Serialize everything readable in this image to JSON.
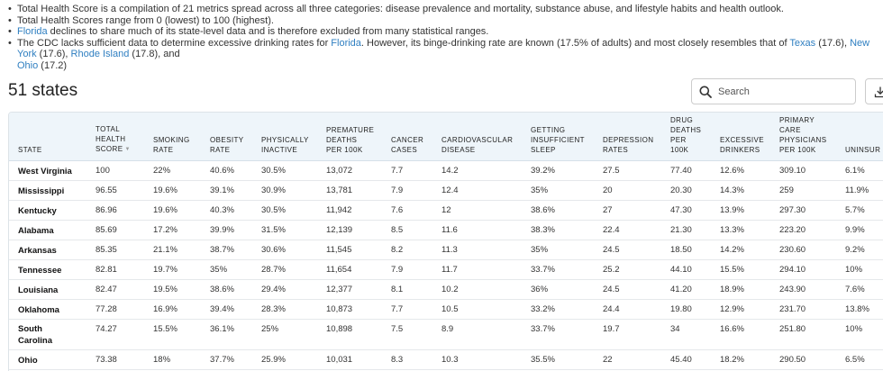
{
  "notes": {
    "n1": "Total Health Score is a compilation of 21 metrics spread across all three categories: disease prevalence and mortality, substance abuse, and lifestyle habits and health outlook.",
    "n2": "Total Health Scores range from 0 (lowest) to 100 (highest).",
    "n3_link": "Florida",
    "n3_text": " declines to share much of its state-level data and is therefore excluded from many statistical ranges.",
    "n4_text1": "The CDC lacks sufficient data to determine excessive drinking rates for ",
    "n4_link1": "Florida",
    "n4_text2": ". However, its binge-drinking rate are known (17.5% of adults) and most closely resembles that of ",
    "n4_link2": "Texas",
    "n4_text3": " (17.6), ",
    "n4_link3": "New York",
    "n4_text4": " (17.6), ",
    "n4_link4": "Rhode Island",
    "n4_text5": " (17.8), and",
    "n4_link5": "Ohio",
    "n4_text6": " (17.2)"
  },
  "count_title": "51 states",
  "search": {
    "placeholder": "Search"
  },
  "icons": {
    "search": "search-icon",
    "download": "download-icon",
    "sort": "sort-down-icon"
  },
  "colors": {
    "link": "#2f7fc1",
    "header_bg": "#eef5fa"
  },
  "table": {
    "columns": [
      "STATE",
      "TOTAL\nHEALTH\nSCORE",
      "SMOKING\nRATE",
      "OBESITY\nRATE",
      "PHYSICALLY\nINACTIVE",
      "PREMATURE\nDEATHS\nPER 100K",
      "CANCER\nCASES",
      "CARDIOVASCULAR\nDISEASE",
      "GETTING\nINSUFFICIENT\nSLEEP",
      "DEPRESSION\nRATES",
      "DRUG\nDEATHS\nPER\n100K",
      "EXCESSIVE\nDRINKERS",
      "PRIMARY\nCARE\nPHYSICIANS\nPER 100K",
      "UNINSUR"
    ],
    "rows": [
      [
        "West Virginia",
        "100",
        "22%",
        "40.6%",
        "30.5%",
        "13,072",
        "7.7",
        "14.2",
        "39.2%",
        "27.5",
        "77.40",
        "12.6%",
        "309.10",
        "6.1%"
      ],
      [
        "Mississippi",
        "96.55",
        "19.6%",
        "39.1%",
        "30.9%",
        "13,781",
        "7.9",
        "12.4",
        "35%",
        "20",
        "20.30",
        "14.3%",
        "259",
        "11.9%"
      ],
      [
        "Kentucky",
        "86.96",
        "19.6%",
        "40.3%",
        "30.5%",
        "11,942",
        "7.6",
        "12",
        "38.6%",
        "27",
        "47.30",
        "13.9%",
        "297.30",
        "5.7%"
      ],
      [
        "Alabama",
        "85.69",
        "17.2%",
        "39.9%",
        "31.5%",
        "12,139",
        "8.5",
        "11.6",
        "38.3%",
        "22.4",
        "21.30",
        "13.3%",
        "223.20",
        "9.9%"
      ],
      [
        "Arkansas",
        "85.35",
        "21.1%",
        "38.7%",
        "30.6%",
        "11,545",
        "8.2",
        "11.3",
        "35%",
        "24.5",
        "18.50",
        "14.2%",
        "230.60",
        "9.2%"
      ],
      [
        "Tennessee",
        "82.81",
        "19.7%",
        "35%",
        "28.7%",
        "11,654",
        "7.9",
        "11.7",
        "33.7%",
        "25.2",
        "44.10",
        "15.5%",
        "294.10",
        "10%"
      ],
      [
        "Louisiana",
        "82.47",
        "19.5%",
        "38.6%",
        "29.4%",
        "12,377",
        "8.1",
        "10.2",
        "36%",
        "24.5",
        "41.20",
        "18.9%",
        "243.90",
        "7.6%"
      ],
      [
        "Oklahoma",
        "77.28",
        "16.9%",
        "39.4%",
        "28.3%",
        "10,873",
        "7.7",
        "10.5",
        "33.2%",
        "24.4",
        "19.80",
        "12.9%",
        "231.70",
        "13.8%"
      ],
      [
        "South\nCarolina",
        "74.27",
        "15.5%",
        "36.1%",
        "25%",
        "10,898",
        "7.5",
        "8.9",
        "33.7%",
        "19.7",
        "34",
        "16.6%",
        "251.80",
        "10%"
      ],
      [
        "Ohio",
        "73.38",
        "18%",
        "37.7%",
        "25.9%",
        "10,031",
        "8.3",
        "10.3",
        "35.5%",
        "22",
        "45.40",
        "18.2%",
        "290.50",
        "6.5%"
      ]
    ]
  }
}
